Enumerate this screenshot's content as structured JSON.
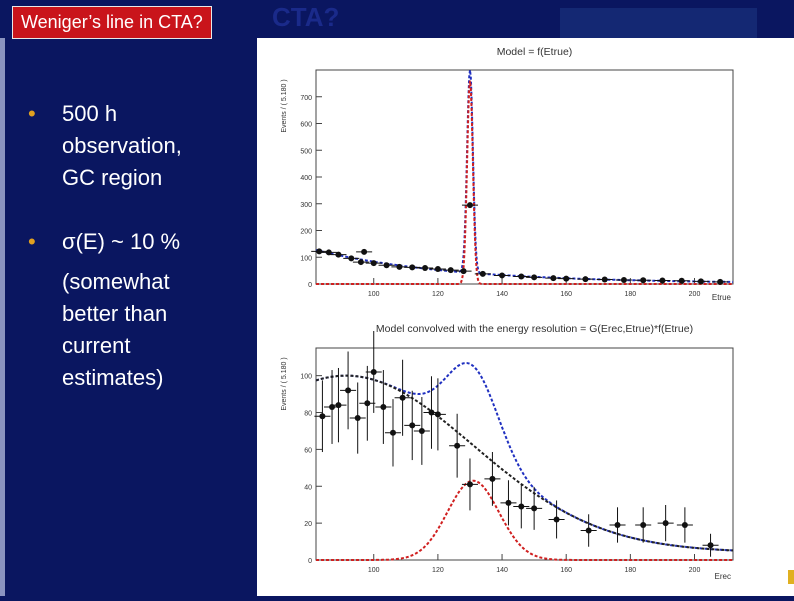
{
  "slide": {
    "title": "Weniger’s line in CTA?",
    "ghost_title": "CTA?",
    "bullets": [
      {
        "marker": "•",
        "lines": [
          "500 h",
          "observation,",
          "GC region"
        ]
      },
      {
        "marker": "•",
        "lines": [
          "σ(E) ~ 10 %"
        ]
      }
    ],
    "sub_lines": [
      "(somewhat",
      "better than",
      "current",
      "estimates)"
    ],
    "colors": {
      "background": "#0a1660",
      "title_box": "#c9141b",
      "bullet_marker": "#e0a020"
    }
  },
  "chart_data": [
    {
      "type": "scatter",
      "title": "Model = f(Etrue)",
      "xlabel": "Etrue",
      "ylabel": "Events / ( 5.180 )",
      "xlim": [
        82,
        212
      ],
      "ylim": [
        0,
        800
      ],
      "xticks": [
        100,
        120,
        140,
        160,
        180,
        200
      ],
      "yticks": [
        0,
        100,
        200,
        300,
        400,
        500,
        600,
        700
      ],
      "points": [
        {
          "x": 83,
          "y": 122
        },
        {
          "x": 86,
          "y": 118
        },
        {
          "x": 89,
          "y": 110
        },
        {
          "x": 93,
          "y": 96
        },
        {
          "x": 96,
          "y": 82
        },
        {
          "x": 97,
          "y": 120
        },
        {
          "x": 100,
          "y": 78
        },
        {
          "x": 104,
          "y": 70
        },
        {
          "x": 108,
          "y": 64
        },
        {
          "x": 112,
          "y": 62
        },
        {
          "x": 116,
          "y": 60
        },
        {
          "x": 120,
          "y": 56
        },
        {
          "x": 124,
          "y": 52
        },
        {
          "x": 128,
          "y": 48
        },
        {
          "x": 130,
          "y": 295
        },
        {
          "x": 134,
          "y": 38
        },
        {
          "x": 140,
          "y": 32
        },
        {
          "x": 146,
          "y": 28
        },
        {
          "x": 150,
          "y": 25
        },
        {
          "x": 156,
          "y": 22
        },
        {
          "x": 160,
          "y": 20
        },
        {
          "x": 166,
          "y": 18
        },
        {
          "x": 172,
          "y": 17
        },
        {
          "x": 178,
          "y": 15
        },
        {
          "x": 184,
          "y": 14
        },
        {
          "x": 190,
          "y": 13
        },
        {
          "x": 196,
          "y": 12
        },
        {
          "x": 202,
          "y": 10
        },
        {
          "x": 208,
          "y": 8
        }
      ],
      "line_peak": {
        "x": 130,
        "sigma": 0.9,
        "height": 760
      },
      "colors": {
        "total": "#2030c0",
        "signal": "#d02020"
      }
    },
    {
      "type": "scatter",
      "title": "Model convolved with the energy resolution = G(Erec,Etrue)*f(Etrue)",
      "xlabel": "Erec",
      "ylabel": "Events / ( 5.180 )",
      "xlim": [
        82,
        212
      ],
      "ylim": [
        0,
        115
      ],
      "xticks": [
        100,
        120,
        140,
        160,
        180,
        200
      ],
      "yticks": [
        0,
        20,
        40,
        60,
        80,
        100
      ],
      "points": [
        {
          "x": 84,
          "y": 78
        },
        {
          "x": 87,
          "y": 83
        },
        {
          "x": 89,
          "y": 84
        },
        {
          "x": 92,
          "y": 92
        },
        {
          "x": 95,
          "y": 77
        },
        {
          "x": 98,
          "y": 85
        },
        {
          "x": 100,
          "y": 102
        },
        {
          "x": 103,
          "y": 83
        },
        {
          "x": 106,
          "y": 69
        },
        {
          "x": 109,
          "y": 88
        },
        {
          "x": 112,
          "y": 73
        },
        {
          "x": 115,
          "y": 70
        },
        {
          "x": 118,
          "y": 80
        },
        {
          "x": 120,
          "y": 79
        },
        {
          "x": 126,
          "y": 62
        },
        {
          "x": 130,
          "y": 41
        },
        {
          "x": 137,
          "y": 44
        },
        {
          "x": 142,
          "y": 31
        },
        {
          "x": 146,
          "y": 29
        },
        {
          "x": 150,
          "y": 28
        },
        {
          "x": 157,
          "y": 22
        },
        {
          "x": 167,
          "y": 16
        },
        {
          "x": 176,
          "y": 19
        },
        {
          "x": 184,
          "y": 19
        },
        {
          "x": 191,
          "y": 20
        },
        {
          "x": 197,
          "y": 19
        },
        {
          "x": 205,
          "y": 8
        }
      ],
      "colors": {
        "total": "#2030c0",
        "signal": "#d02020",
        "background": "#222222"
      }
    }
  ]
}
